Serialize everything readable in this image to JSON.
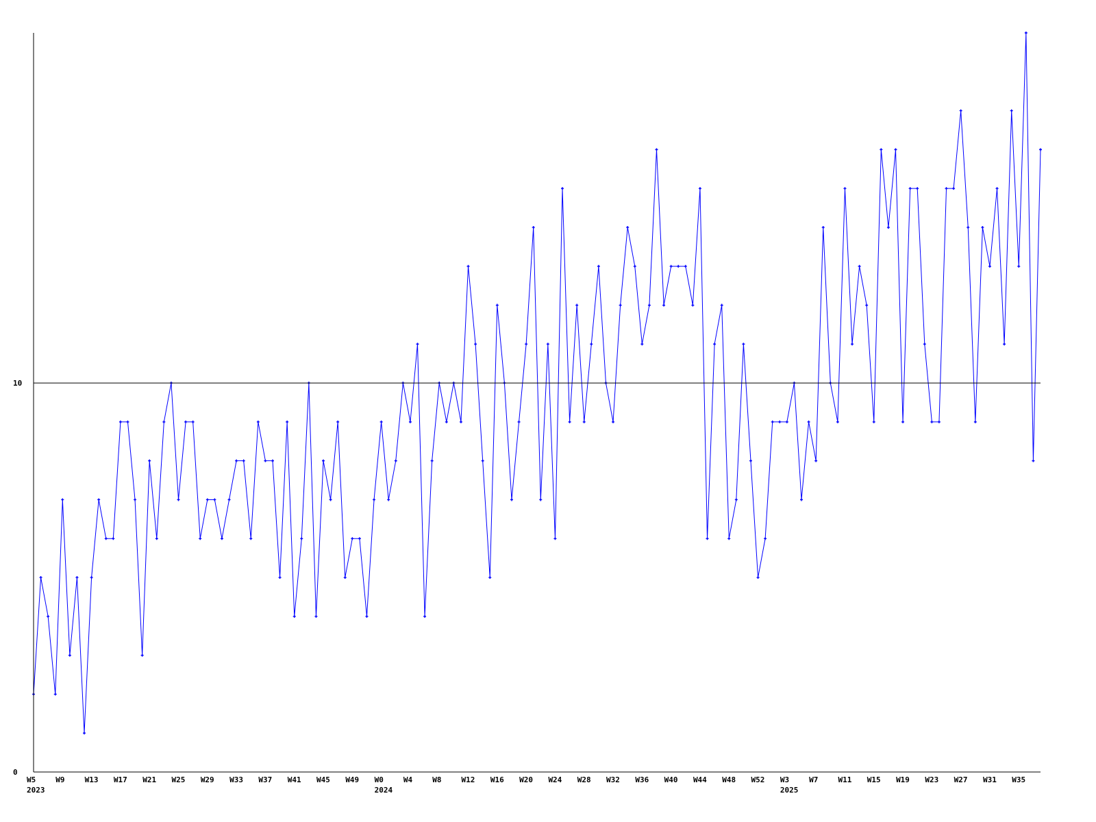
{
  "chart_data": {
    "type": "line",
    "title": "",
    "xlabel": "",
    "ylabel": "",
    "ylim": [
      0,
      19
    ],
    "yticks": [
      "0",
      "10"
    ],
    "reference_line": 10,
    "grid": false,
    "line_color": "#0000ff",
    "axis_color": "#000000",
    "x_tick_labels": [
      {
        "label": "W5",
        "year": "2023"
      },
      {
        "label": "W9"
      },
      {
        "label": "W13"
      },
      {
        "label": "W17"
      },
      {
        "label": "W21"
      },
      {
        "label": "W25"
      },
      {
        "label": "W29"
      },
      {
        "label": "W33"
      },
      {
        "label": "W37"
      },
      {
        "label": "W41"
      },
      {
        "label": "W45"
      },
      {
        "label": "W49"
      },
      {
        "label": "W0",
        "year": "2024"
      },
      {
        "label": "W4"
      },
      {
        "label": "W8"
      },
      {
        "label": "W12"
      },
      {
        "label": "W16"
      },
      {
        "label": "W20"
      },
      {
        "label": "W24"
      },
      {
        "label": "W28"
      },
      {
        "label": "W32"
      },
      {
        "label": "W36"
      },
      {
        "label": "W40"
      },
      {
        "label": "W44"
      },
      {
        "label": "W48"
      },
      {
        "label": "W52"
      },
      {
        "label": "W3",
        "year": "2025"
      },
      {
        "label": "W7"
      },
      {
        "label": "W11"
      },
      {
        "label": "W15"
      },
      {
        "label": "W19"
      },
      {
        "label": "W23"
      },
      {
        "label": "W27"
      },
      {
        "label": "W31"
      },
      {
        "label": "W35"
      }
    ],
    "values": [
      2,
      5,
      4,
      2,
      7,
      3,
      5,
      1,
      5,
      7,
      6,
      6,
      9,
      9,
      7,
      3,
      8,
      6,
      9,
      10,
      7,
      9,
      9,
      6,
      7,
      7,
      6,
      7,
      8,
      8,
      6,
      9,
      8,
      8,
      5,
      9,
      4,
      6,
      10,
      4,
      8,
      7,
      9,
      5,
      6,
      6,
      4,
      7,
      9,
      7,
      8,
      10,
      9,
      11,
      4,
      8,
      10,
      9,
      10,
      9,
      13,
      11,
      8,
      5,
      12,
      10,
      7,
      9,
      11,
      14,
      7,
      11,
      6,
      15,
      9,
      12,
      9,
      11,
      13,
      10,
      9,
      12,
      14,
      13,
      11,
      12,
      16,
      12,
      13,
      13,
      13,
      12,
      15,
      6,
      11,
      12,
      6,
      7,
      11,
      8,
      5,
      6,
      9,
      9,
      9,
      10,
      7,
      9,
      8,
      14,
      10,
      9,
      15,
      11,
      13,
      12,
      9,
      16,
      14,
      16,
      9,
      15,
      15,
      11,
      9,
      9,
      15,
      15,
      17,
      14,
      9,
      14,
      13,
      15,
      11,
      17,
      13,
      19,
      8,
      16
    ]
  }
}
